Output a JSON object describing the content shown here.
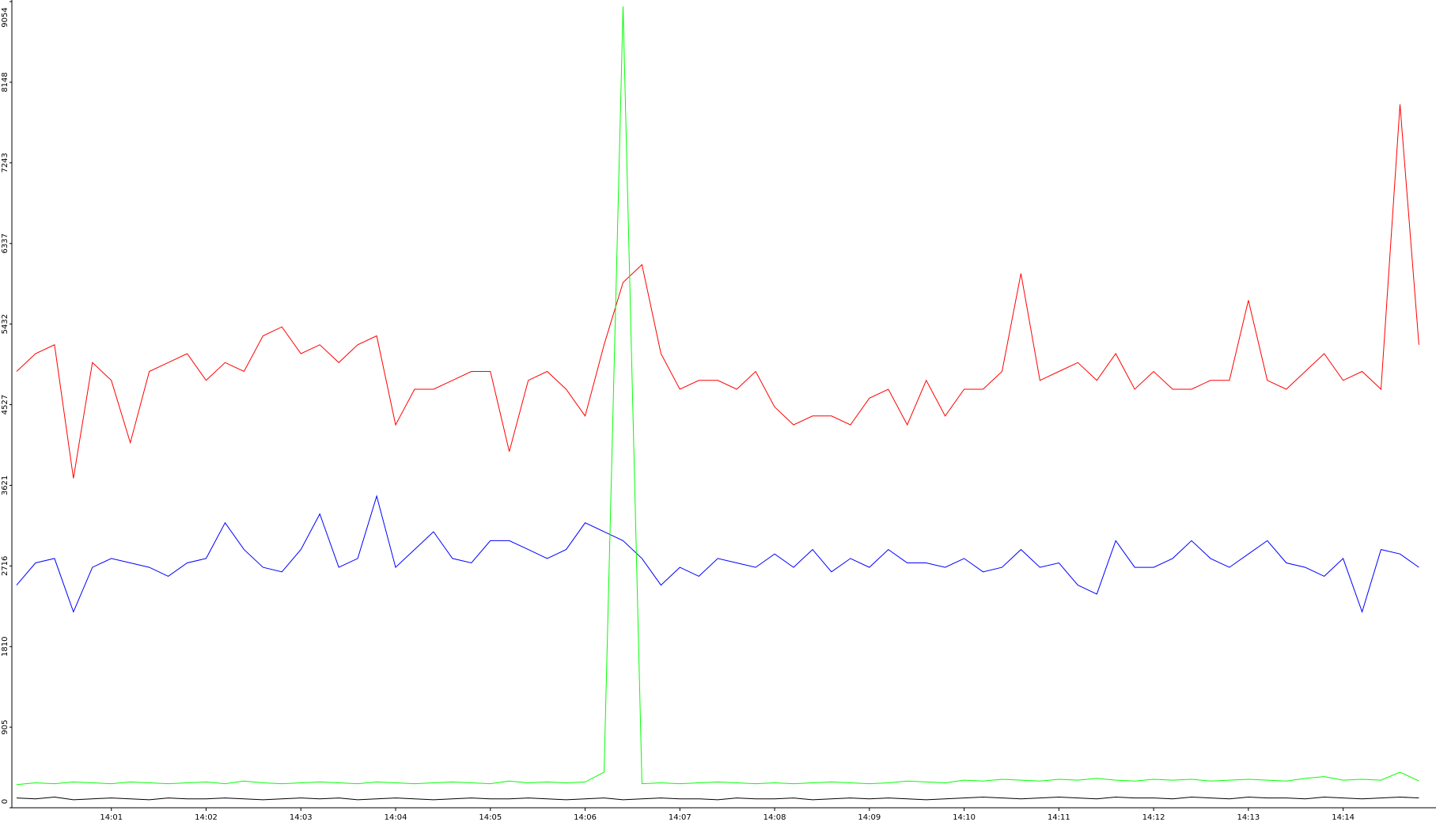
{
  "chart_data": {
    "type": "line",
    "x": [
      0,
      0.2,
      0.4,
      0.6,
      0.8,
      1,
      1.2,
      1.4,
      1.6,
      1.8,
      2,
      2.2,
      2.4,
      2.6,
      2.8,
      3,
      3.2,
      3.4,
      3.6,
      3.8,
      4,
      4.2,
      4.4,
      4.6,
      4.8,
      5,
      5.2,
      5.4,
      5.6,
      5.8,
      6,
      6.2,
      6.4,
      6.6,
      6.8,
      7,
      7.2,
      7.4,
      7.6,
      7.8,
      8,
      8.2,
      8.4,
      8.6,
      8.8,
      9,
      9.2,
      9.4,
      9.6,
      9.8,
      10,
      10.2,
      10.4,
      10.6,
      10.8,
      11,
      11.2,
      11.4,
      11.6,
      11.8,
      12,
      12.2,
      12.4,
      12.6,
      12.8,
      13,
      13.2,
      13.4,
      13.6,
      13.8,
      14,
      14.2,
      14.4,
      14.6,
      14.8
    ],
    "series": [
      {
        "color": "#ff0000",
        "values": [
          4900,
          5100,
          5200,
          3700,
          5000,
          4800,
          4100,
          4900,
          5000,
          5100,
          4800,
          5000,
          4900,
          5300,
          5400,
          5100,
          5200,
          5000,
          5200,
          5300,
          4300,
          4700,
          4700,
          4800,
          4900,
          4900,
          4000,
          4800,
          4900,
          4700,
          4400,
          5200,
          5900,
          6100,
          5100,
          4700,
          4800,
          4800,
          4700,
          4900,
          4500,
          4300,
          4400,
          4400,
          4300,
          4600,
          4700,
          4300,
          4800,
          4400,
          4700,
          4700,
          4900,
          6000,
          4800,
          4900,
          5000,
          4800,
          5100,
          4700,
          4900,
          4700,
          4700,
          4800,
          4800,
          5700,
          4800,
          4700,
          4900,
          5100,
          4800,
          4900,
          4700,
          7900,
          5200
        ]
      },
      {
        "color": "#0000ff",
        "values": [
          2500,
          2750,
          2800,
          2200,
          2700,
          2800,
          2750,
          2700,
          2600,
          2750,
          2800,
          3200,
          2900,
          2700,
          2650,
          2900,
          3300,
          2700,
          2800,
          3500,
          2700,
          2900,
          3100,
          2800,
          2750,
          3000,
          3000,
          2900,
          2800,
          2900,
          3200,
          3100,
          3000,
          2800,
          2500,
          2700,
          2600,
          2800,
          2750,
          2700,
          2850,
          2700,
          2900,
          2650,
          2800,
          2700,
          2900,
          2750,
          2750,
          2700,
          2800,
          2650,
          2700,
          2900,
          2700,
          2750,
          2500,
          2400,
          3000,
          2700,
          2700,
          2800,
          3000,
          2800,
          2700,
          2850,
          3000,
          2750,
          2700,
          2600,
          2800,
          2200,
          2900,
          2850,
          2700
        ]
      },
      {
        "color": "#00ff00",
        "values": [
          260,
          280,
          270,
          290,
          280,
          270,
          290,
          280,
          270,
          280,
          290,
          270,
          300,
          280,
          270,
          280,
          290,
          280,
          270,
          290,
          280,
          270,
          280,
          290,
          280,
          270,
          300,
          280,
          290,
          280,
          290,
          400,
          9000,
          270,
          280,
          270,
          280,
          290,
          280,
          270,
          280,
          270,
          280,
          290,
          280,
          270,
          280,
          300,
          290,
          280,
          310,
          300,
          320,
          310,
          300,
          320,
          310,
          330,
          310,
          300,
          320,
          310,
          320,
          300,
          310,
          320,
          310,
          300,
          330,
          350,
          310,
          320,
          310,
          400,
          300
        ]
      },
      {
        "color": "#000000",
        "values": [
          110,
          100,
          120,
          90,
          100,
          110,
          100,
          90,
          110,
          100,
          100,
          110,
          100,
          90,
          100,
          110,
          100,
          110,
          90,
          100,
          110,
          100,
          90,
          100,
          110,
          100,
          100,
          110,
          100,
          90,
          100,
          110,
          90,
          100,
          110,
          100,
          100,
          90,
          110,
          100,
          100,
          110,
          90,
          100,
          110,
          100,
          110,
          100,
          90,
          100,
          110,
          120,
          110,
          100,
          110,
          120,
          110,
          100,
          120,
          110,
          110,
          100,
          120,
          110,
          100,
          120,
          110,
          110,
          100,
          120,
          110,
          100,
          110,
          120,
          110
        ]
      }
    ],
    "xlim": [
      -0.05,
      14.98
    ],
    "xticks": [
      {
        "value": 1,
        "label": "14:01"
      },
      {
        "value": 2,
        "label": "14:02"
      },
      {
        "value": 3,
        "label": "14:03"
      },
      {
        "value": 4,
        "label": "14:04"
      },
      {
        "value": 5,
        "label": "14:05"
      },
      {
        "value": 6,
        "label": "14:06"
      },
      {
        "value": 7,
        "label": "14:07"
      },
      {
        "value": 8,
        "label": "14:08"
      },
      {
        "value": 9,
        "label": "14:09"
      },
      {
        "value": 10,
        "label": "14:10"
      },
      {
        "value": 11,
        "label": "14:11"
      },
      {
        "value": 12,
        "label": "14:12"
      },
      {
        "value": 13,
        "label": "14:13"
      },
      {
        "value": 14,
        "label": "14:14"
      }
    ],
    "ylim": [
      0,
      9054
    ],
    "yticks": [
      0,
      905,
      1810,
      2716,
      3621,
      4527,
      5432,
      6337,
      7243,
      8148,
      9054
    ]
  }
}
